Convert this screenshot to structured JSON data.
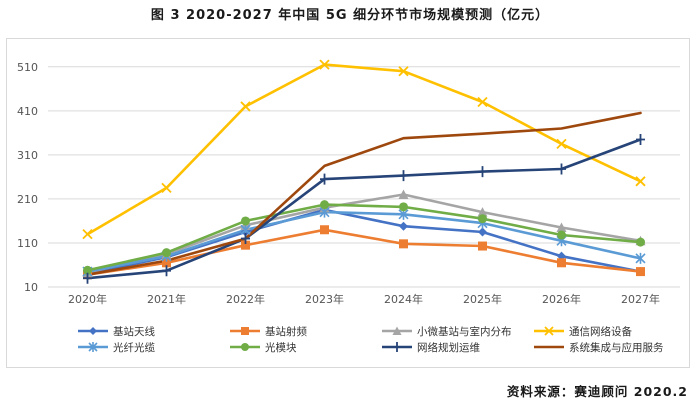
{
  "header": {
    "title": "图 3  2020-2027 年中国 5G 细分环节市场规模预测（亿元）"
  },
  "footer": {
    "source": "资料来源：赛迪顾问  2020.2"
  },
  "chart_data": {
    "type": "line",
    "title": "图 3  2020-2027 年中国 5G 细分环节市场规模预测（亿元）",
    "xlabel": "",
    "ylabel": "亿元",
    "categories": [
      "2020年",
      "2021年",
      "2022年",
      "2023年",
      "2024年",
      "2025年",
      "2026年",
      "2027年"
    ],
    "yticks": [
      10,
      110,
      210,
      310,
      410,
      510
    ],
    "ylim": [
      10,
      530
    ],
    "grid": true,
    "legend": "bottom",
    "series": [
      {
        "name": "基站天线",
        "color": "#4472C4",
        "marker": "diamond",
        "values": [
          40,
          78,
          135,
          185,
          148,
          135,
          80,
          45
        ]
      },
      {
        "name": "基站射频",
        "color": "#ED7D31",
        "marker": "square",
        "values": [
          38,
          65,
          105,
          140,
          108,
          103,
          65,
          45
        ]
      },
      {
        "name": "小微基站与室内分布",
        "color": "#A5A5A5",
        "marker": "triangle",
        "values": [
          43,
          85,
          150,
          190,
          220,
          180,
          145,
          115
        ]
      },
      {
        "name": "通信网络设备",
        "color": "#FFC000",
        "marker": "x",
        "values": [
          130,
          235,
          420,
          515,
          500,
          430,
          335,
          250
        ]
      },
      {
        "name": "光纤光缆",
        "color": "#5B9BD5",
        "marker": "star",
        "values": [
          45,
          80,
          140,
          180,
          175,
          155,
          115,
          75
        ]
      },
      {
        "name": "光模块",
        "color": "#70AD47",
        "marker": "circle",
        "values": [
          48,
          88,
          160,
          197,
          192,
          165,
          128,
          112
        ]
      },
      {
        "name": "网络规划运维",
        "color": "#264478",
        "marker": "plus",
        "values": [
          30,
          47,
          120,
          255,
          263,
          272,
          278,
          345
        ]
      },
      {
        "name": "系统集成与应用服务",
        "color": "#9E480E",
        "marker": "none",
        "values": [
          38,
          70,
          120,
          285,
          348,
          358,
          370,
          405
        ]
      }
    ]
  }
}
